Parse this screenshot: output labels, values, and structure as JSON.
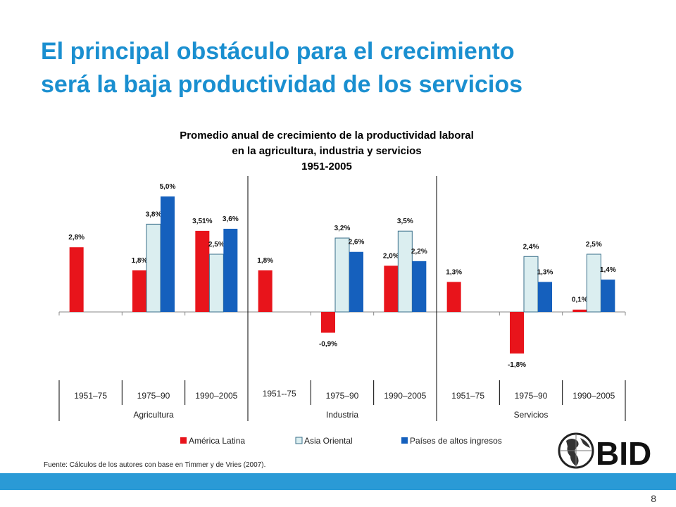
{
  "slide": {
    "title_line1": "El principal obstáculo para el crecimiento",
    "title_line2": "será la baja productividad de los servicios",
    "source": "Fuente: Cálculos de los autores con base en Timmer y de Vries (2007).",
    "page_number": "8",
    "logo_text": "BID"
  },
  "chart_data": {
    "type": "bar",
    "title_lines": [
      "Promedio anual de crecimiento de la productividad laboral",
      "en la agricultura, industria y servicios",
      "1951-2005"
    ],
    "groups": [
      {
        "name": "Agricultura",
        "periods": [
          "1951–75",
          "1975–90",
          "1990–2005"
        ]
      },
      {
        "name": "Industria",
        "periods": [
          "1951--75",
          "1975–90",
          "1990–2005"
        ]
      },
      {
        "name": "Servicios",
        "periods": [
          "1951–75",
          "1975–90",
          "1990–2005"
        ]
      }
    ],
    "series": [
      {
        "name": "América Latina",
        "color": "#e8141b",
        "values": [
          2.8,
          1.8,
          3.51,
          1.8,
          -0.9,
          2.0,
          1.3,
          -1.8,
          0.1
        ],
        "labels": [
          "2,8%",
          "1,8%",
          "3,51%",
          "1,8%",
          "-0,9%",
          "2,0%",
          "1,3%",
          "-1,8%",
          "0,1%"
        ]
      },
      {
        "name": "Asia Oriental",
        "color": "#dbeef0",
        "values": [
          null,
          3.8,
          2.5,
          null,
          3.2,
          3.5,
          null,
          2.4,
          2.5
        ],
        "labels": [
          null,
          "3,8%",
          "2,5%",
          null,
          "3,2%",
          "3,5%",
          null,
          "2,4%",
          "2,5%"
        ]
      },
      {
        "name": "Países de altos ingresos",
        "color": "#1560bd",
        "values": [
          null,
          5.0,
          3.6,
          null,
          2.6,
          2.2,
          null,
          1.3,
          1.4
        ],
        "labels": [
          null,
          "5,0%",
          "3,6%",
          null,
          "2,6%",
          "2,2%",
          null,
          "1,3%",
          "1,4%"
        ]
      }
    ],
    "legend_position": "bottom",
    "grid": false
  }
}
